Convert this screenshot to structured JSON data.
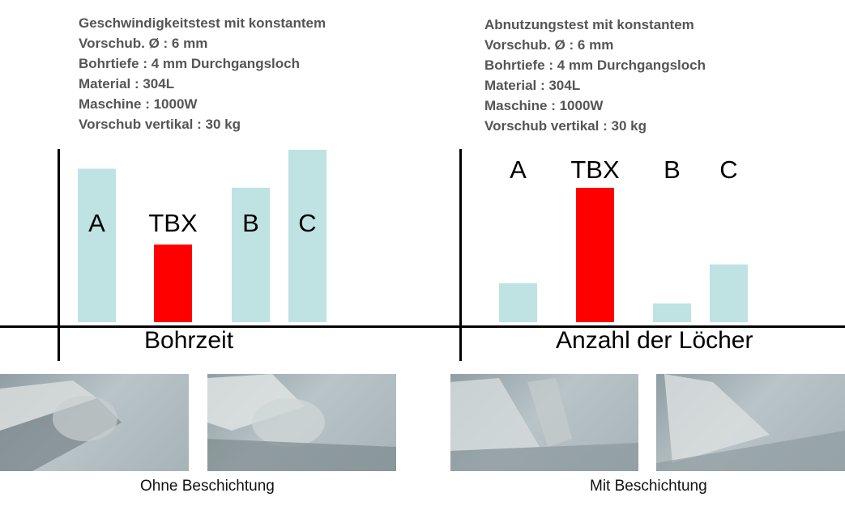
{
  "colors": {
    "bar_default": "#bfe2e3",
    "bar_highlight": "#fe0000",
    "text_info": "#555555"
  },
  "panels": {
    "left": {
      "info_lines": [
        "Geschwindigkeitstest mit konstantem",
        "Vorschub.  Ø : 6 mm",
        "Bohrtiefe : 4 mm Durchgangsloch",
        "Material : 304L",
        "Maschine : 1000W",
        "Vorschub vertikal : 30 kg"
      ],
      "caption": "Ohne Beschichtung"
    },
    "right": {
      "info_lines": [
        "Abnutzungstest mit konstantem",
        "Vorschub.  Ø : 6 mm",
        "Bohrtiefe : 4 mm Durchgangsloch",
        "Material : 304L",
        "Maschine : 1000W",
        "Vorschub vertikal : 30 kg"
      ],
      "caption": "Mit Beschichtung"
    }
  },
  "chart_data": [
    {
      "type": "bar",
      "title": "",
      "xlabel": "Bohrzeit",
      "ylabel": "",
      "categories": [
        "A",
        "TBX",
        "B",
        "C"
      ],
      "values": [
        0.89,
        0.45,
        0.78,
        1.0
      ],
      "highlight": "TBX",
      "ylim": [
        0,
        1
      ],
      "grid": false,
      "legend": "none"
    },
    {
      "type": "bar",
      "title": "",
      "xlabel": "Anzahl der Löcher",
      "ylabel": "",
      "categories": [
        "A",
        "TBX",
        "B",
        "C"
      ],
      "values": [
        0.29,
        1.0,
        0.14,
        0.43
      ],
      "highlight": "TBX",
      "ylim": [
        0,
        1
      ],
      "grid": false,
      "legend": "none"
    }
  ]
}
